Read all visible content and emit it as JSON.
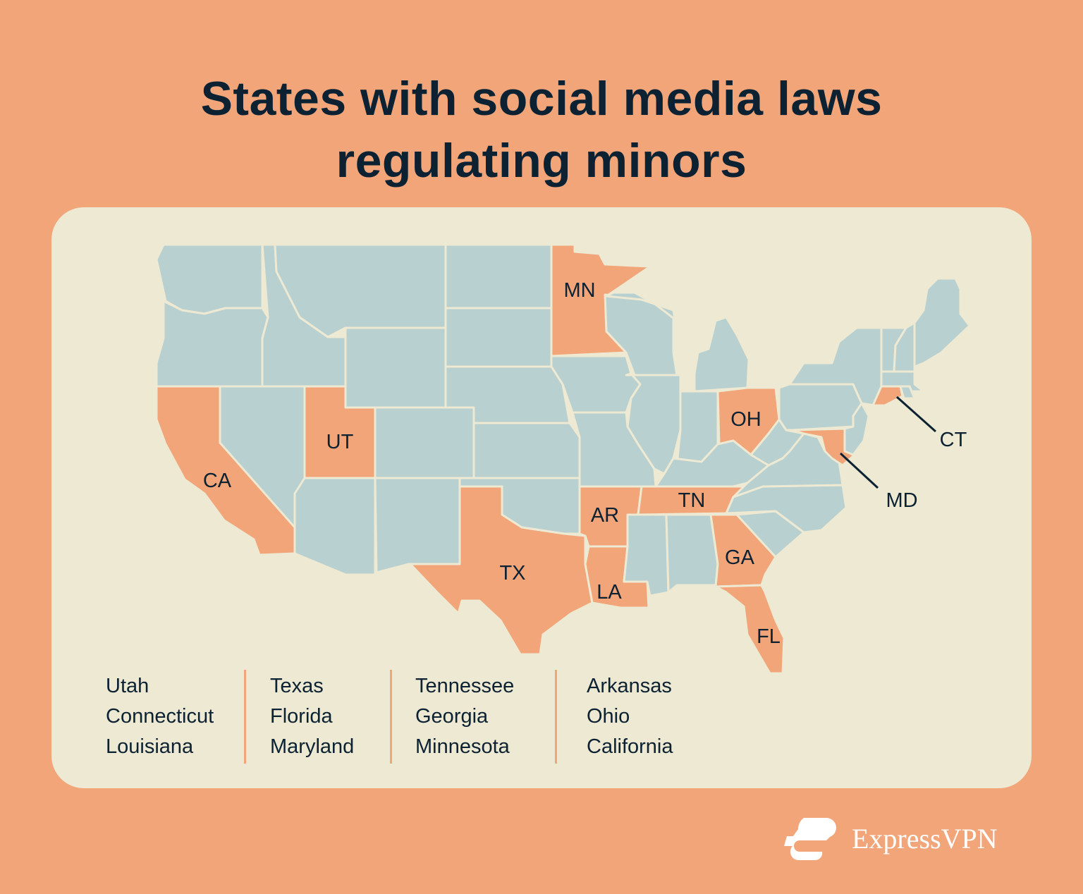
{
  "title_line1": "States with social media laws",
  "title_line2": "regulating minors",
  "colors": {
    "background": "#F1A579",
    "card": "#EEE9D2",
    "state_default": "#B8D0D0",
    "state_law": "#F1A579",
    "text": "#0C2233"
  },
  "map": {
    "highlighted_states": [
      "UT",
      "CT",
      "LA",
      "TX",
      "FL",
      "MD",
      "TN",
      "GA",
      "MN",
      "AR",
      "OH",
      "CA"
    ],
    "labels": {
      "MN": "MN",
      "UT": "UT",
      "CA": "CA",
      "OH": "OH",
      "CT": "CT",
      "MD": "MD",
      "AR": "AR",
      "TN": "TN",
      "TX": "TX",
      "GA": "GA",
      "LA": "LA",
      "FL": "FL"
    }
  },
  "legend": [
    [
      "Utah",
      "Connecticut",
      "Louisiana"
    ],
    [
      "Texas",
      "Florida",
      "Maryland"
    ],
    [
      "Tennessee",
      "Georgia",
      "Minnesota"
    ],
    [
      "Arkansas",
      "Ohio",
      "California"
    ]
  ],
  "brand": "ExpressVPN"
}
